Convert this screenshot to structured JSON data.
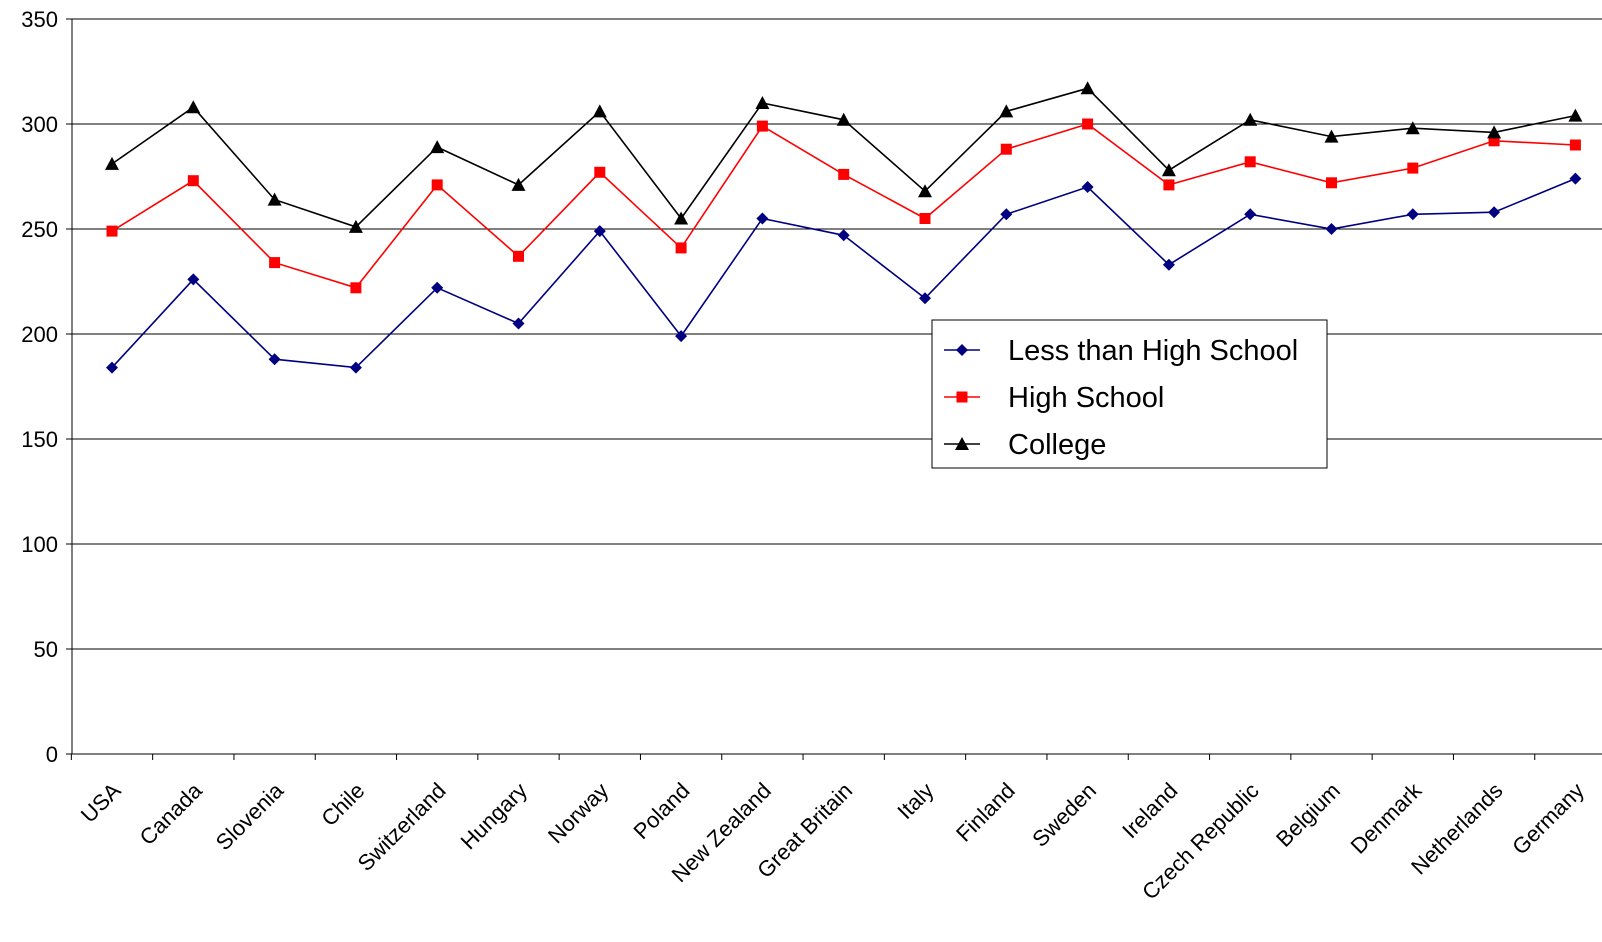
{
  "chart_data": {
    "type": "line",
    "title": "",
    "xlabel": "",
    "ylabel": "",
    "ylim": [
      0,
      350
    ],
    "yticks": [
      0,
      50,
      100,
      150,
      200,
      250,
      300,
      350
    ],
    "grid": true,
    "legend_position": "center-right",
    "categories": [
      "USA",
      "Canada",
      "Slovenia",
      "Chile",
      "Switzerland",
      "Hungary",
      "Norway",
      "Poland",
      "New Zealand",
      "Great Britain",
      "Italy",
      "Finland",
      "Sweden",
      "Ireland",
      "Czech Republic",
      "Belgium",
      "Denmark",
      "Netherlands",
      "Germany"
    ],
    "series": [
      {
        "name": "Less than High School",
        "color": "#000080",
        "marker": "diamond",
        "values": [
          184,
          226,
          188,
          184,
          222,
          205,
          249,
          199,
          255,
          247,
          217,
          257,
          270,
          233,
          257,
          250,
          257,
          258,
          274
        ]
      },
      {
        "name": "High School",
        "color": "#ff0000",
        "marker": "square",
        "values": [
          249,
          273,
          234,
          222,
          271,
          237,
          277,
          241,
          299,
          276,
          255,
          288,
          300,
          271,
          282,
          272,
          279,
          292,
          290
        ]
      },
      {
        "name": "College",
        "color": "#000000",
        "marker": "triangle",
        "values": [
          281,
          308,
          264,
          251,
          289,
          271,
          306,
          255,
          310,
          302,
          268,
          306,
          317,
          278,
          302,
          294,
          298,
          296,
          304
        ]
      }
    ]
  }
}
